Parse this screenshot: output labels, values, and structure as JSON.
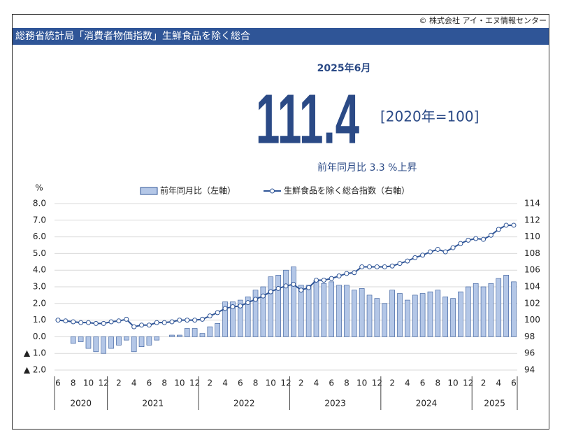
{
  "page": {
    "copyright": "© 株式会社 アイ・エヌ情報センター",
    "title": "総務省統計局「消費者物価指数」生鮮食品を除く総合",
    "period": "2025年6月",
    "value": "111.4",
    "base": "[2020年=100]",
    "change": "前年同月比 3.3 %上昇"
  },
  "chart_data": {
    "type": "bar-line",
    "y_label": "%",
    "categories": [
      "6",
      null,
      "8",
      null,
      "10",
      null,
      "12",
      null,
      "2",
      null,
      "4",
      null,
      "6",
      null,
      "8",
      null,
      "10",
      null,
      "12",
      null,
      "2",
      null,
      "4",
      null,
      "6",
      null,
      "8",
      null,
      "10",
      null,
      "12",
      null,
      "2",
      null,
      "4",
      null,
      "6",
      null,
      "8",
      null,
      "10",
      null,
      "12",
      null,
      "2",
      null,
      "4",
      null,
      "6",
      null,
      "8",
      null,
      "10",
      null,
      "12",
      null,
      "2",
      null,
      "4",
      null,
      "6"
    ],
    "years": [
      "2020",
      "2021",
      "2022",
      "2023",
      "2024",
      "2025"
    ],
    "series": [
      {
        "name": "前年同月比（左軸）",
        "type": "bar",
        "color": "#b4c7e7",
        "edge": "#2f5597",
        "values": [
          0.0,
          0.0,
          -0.4,
          -0.3,
          -0.7,
          -0.9,
          -1.0,
          -0.7,
          -0.5,
          -0.2,
          -0.9,
          -0.6,
          -0.5,
          -0.2,
          0.0,
          0.1,
          0.1,
          0.5,
          0.5,
          0.2,
          0.6,
          0.8,
          2.1,
          2.1,
          2.2,
          2.4,
          2.8,
          3.0,
          3.6,
          3.7,
          4.0,
          4.2,
          3.1,
          3.1,
          3.4,
          3.2,
          3.3,
          3.1,
          3.1,
          2.8,
          2.9,
          2.5,
          2.3,
          2.0,
          2.8,
          2.6,
          2.2,
          2.5,
          2.6,
          2.7,
          2.8,
          2.4,
          2.3,
          2.7,
          3.0,
          3.2,
          3.0,
          3.2,
          3.5,
          3.7,
          3.3
        ]
      },
      {
        "name": "生鮮食品を除く総合指数（右軸）",
        "type": "line",
        "axis": "y2",
        "color": "#2f5597",
        "values": [
          100.0,
          99.9,
          99.8,
          99.7,
          99.7,
          99.6,
          99.6,
          99.8,
          99.9,
          100.1,
          99.2,
          99.4,
          99.4,
          99.7,
          99.7,
          99.8,
          100.0,
          100.0,
          100.0,
          100.1,
          100.5,
          100.9,
          101.4,
          101.6,
          101.7,
          102.1,
          102.5,
          102.9,
          103.4,
          103.8,
          104.1,
          104.3,
          103.6,
          103.9,
          104.8,
          104.8,
          105.0,
          105.3,
          105.6,
          105.7,
          106.4,
          106.4,
          106.4,
          106.4,
          106.5,
          106.8,
          107.1,
          107.5,
          107.8,
          108.2,
          108.5,
          108.2,
          108.7,
          109.2,
          109.6,
          109.8,
          109.7,
          110.2,
          110.9,
          111.4,
          111.4
        ]
      }
    ],
    "ylim": [
      -2,
      8
    ],
    "yticks": [
      {
        "value": -2,
        "label": "▲ 2.0"
      },
      {
        "value": -1,
        "label": "▲ 1.0"
      },
      {
        "value": 0,
        "label": "0.0"
      },
      {
        "value": 1,
        "label": "1.0"
      },
      {
        "value": 2,
        "label": "2.0"
      },
      {
        "value": 3,
        "label": "3.0"
      },
      {
        "value": 4,
        "label": "4.0"
      },
      {
        "value": 5,
        "label": "5.0"
      },
      {
        "value": 6,
        "label": "6.0"
      },
      {
        "value": 7,
        "label": "7.0"
      },
      {
        "value": 8,
        "label": "8.0"
      }
    ],
    "y2lim": [
      94,
      114
    ],
    "y2ticks": [
      94,
      96,
      98,
      100,
      102,
      104,
      106,
      108,
      110,
      112,
      114
    ],
    "grid": true
  }
}
